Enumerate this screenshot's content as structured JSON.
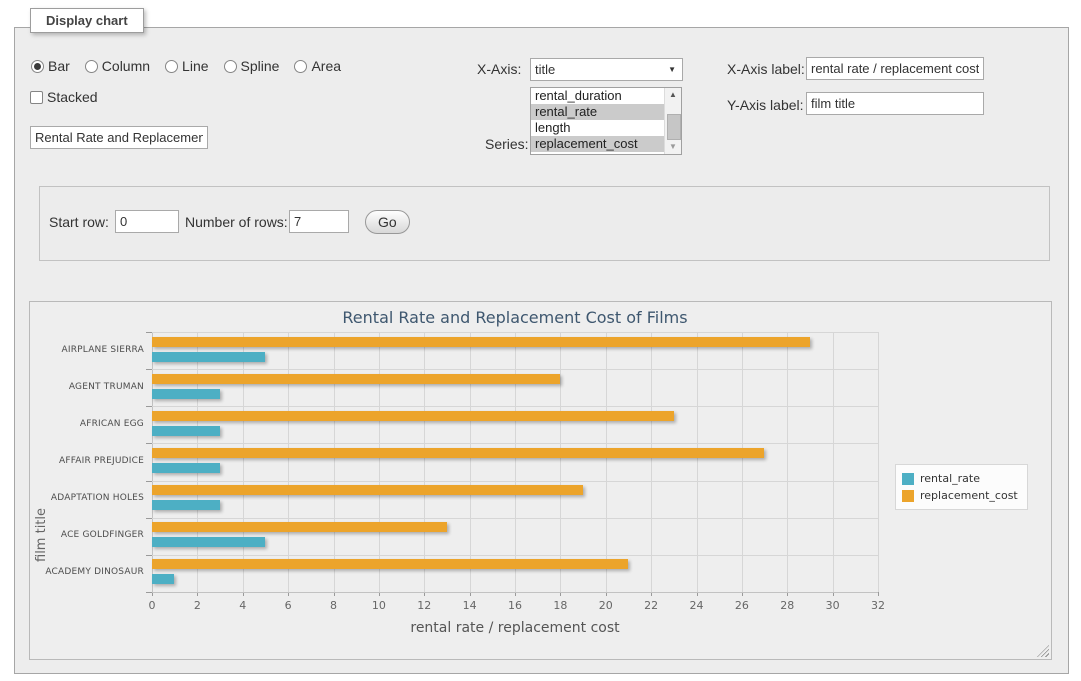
{
  "panel": {
    "tab_title": "Display chart",
    "chart_types": [
      "Bar",
      "Column",
      "Line",
      "Spline",
      "Area"
    ],
    "selected_chart_type": "Bar",
    "stacked_label": "Stacked",
    "stacked_checked": false,
    "chart_title_value": "Rental Rate and Replacement Cost of Films",
    "x_axis": {
      "label": "X-Axis:",
      "value": "title"
    },
    "series_field": {
      "label": "Series:",
      "options": [
        {
          "label": "rental_duration",
          "selected": false
        },
        {
          "label": "rental_rate",
          "selected": true
        },
        {
          "label": "length",
          "selected": false
        },
        {
          "label": "replacement_cost",
          "selected": true
        }
      ]
    },
    "x_axis_label_field": {
      "label": "X-Axis label:",
      "value": "rental rate / replacement cost"
    },
    "y_axis_label_field": {
      "label": "Y-Axis label:",
      "value": "film title"
    }
  },
  "rows_panel": {
    "start_row": {
      "label": "Start row:",
      "value": "0"
    },
    "num_rows": {
      "label": "Number of rows:",
      "value": "7"
    },
    "go_label": "Go"
  },
  "icons": {
    "dropdown_arrow": "▼",
    "scroll_up": "▲",
    "scroll_down": "▼"
  },
  "chart_data": {
    "type": "bar",
    "orientation": "horizontal",
    "title": "Rental Rate and Replacement Cost of Films",
    "title_color": "#3E576F",
    "xlabel": "rental rate / replacement cost",
    "ylabel": "film title",
    "categories": [
      "AIRPLANE SIERRA",
      "AGENT TRUMAN",
      "AFRICAN EGG",
      "AFFAIR PREJUDICE",
      "ADAPTATION HOLES",
      "ACE GOLDFINGER",
      "ACADEMY DINOSAUR"
    ],
    "series": [
      {
        "name": "rental_rate",
        "color": "#4DAFC4",
        "values": [
          4.99,
          2.99,
          2.99,
          2.99,
          2.99,
          4.99,
          0.99
        ]
      },
      {
        "name": "replacement_cost",
        "color": "#ECA42B",
        "values": [
          28.99,
          17.99,
          22.99,
          26.99,
          18.99,
          12.99,
          20.99
        ]
      }
    ],
    "xlim": [
      0,
      32
    ],
    "x_tick_step": 2,
    "grid": true,
    "legend_position": "right"
  }
}
